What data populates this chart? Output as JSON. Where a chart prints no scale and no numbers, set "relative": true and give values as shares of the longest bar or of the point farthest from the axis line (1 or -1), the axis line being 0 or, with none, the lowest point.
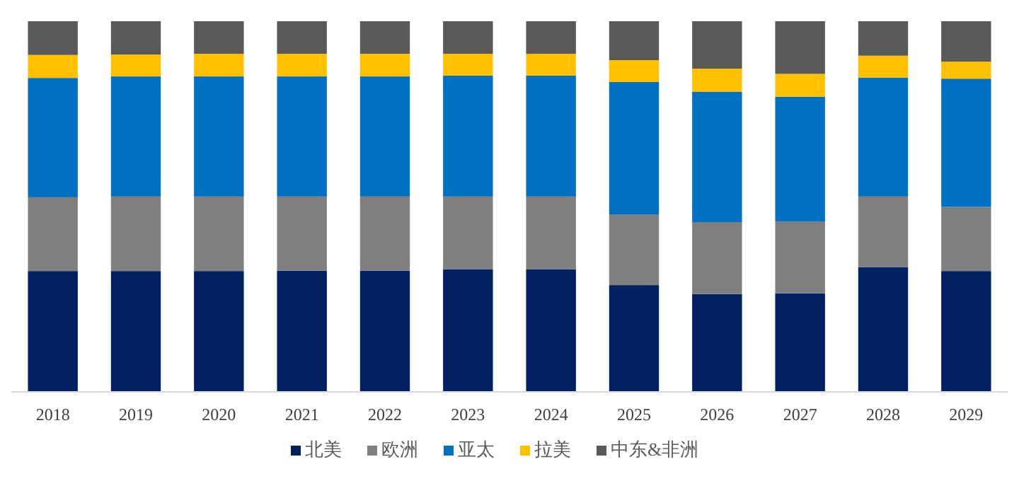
{
  "chart_data": {
    "type": "bar",
    "stacked": true,
    "relative": true,
    "legend": "bottom",
    "grid": false,
    "categories": [
      "2018",
      "2019",
      "2020",
      "2021",
      "2022",
      "2023",
      "2024",
      "2025",
      "2026",
      "2027",
      "2028",
      "2029"
    ],
    "series": [
      {
        "name": "北美",
        "color": "#002060",
        "values": [
          0.326,
          0.326,
          0.326,
          0.327,
          0.327,
          0.331,
          0.331,
          0.288,
          0.264,
          0.266,
          0.336,
          0.326
        ]
      },
      {
        "name": "欧洲",
        "color": "#7f7f7f",
        "values": [
          0.199,
          0.201,
          0.201,
          0.2,
          0.2,
          0.196,
          0.196,
          0.191,
          0.194,
          0.194,
          0.191,
          0.173
        ]
      },
      {
        "name": "亚太",
        "color": "#0070c0",
        "values": [
          0.322,
          0.324,
          0.324,
          0.324,
          0.324,
          0.326,
          0.326,
          0.357,
          0.352,
          0.336,
          0.321,
          0.346
        ]
      },
      {
        "name": "拉美",
        "color": "#ffc000",
        "values": [
          0.062,
          0.059,
          0.061,
          0.061,
          0.061,
          0.059,
          0.059,
          0.059,
          0.062,
          0.062,
          0.059,
          0.046
        ]
      },
      {
        "name": "中东&非洲",
        "color": "#595959",
        "values": [
          0.091,
          0.09,
          0.088,
          0.088,
          0.088,
          0.088,
          0.088,
          0.105,
          0.128,
          0.142,
          0.093,
          0.109
        ]
      }
    ]
  }
}
